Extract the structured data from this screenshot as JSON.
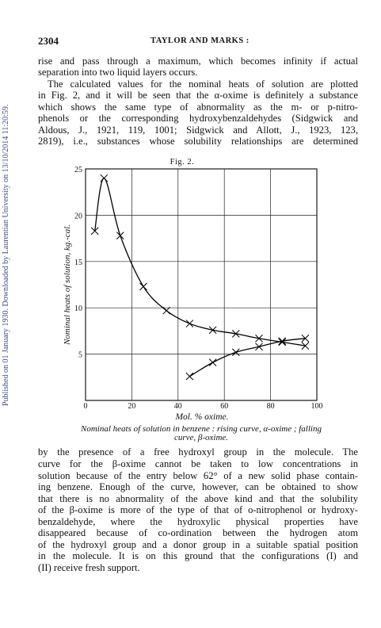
{
  "side_note": "Published on 01 January 1930. Downloaded by Laurentian University on 13/10/2014 11:20:59.",
  "header": {
    "page_number": "2304",
    "running_title": "TAYLOR AND MARKS :"
  },
  "body_top": [
    "rise and pass through a maximum, which becomes infinity if actual",
    "separation into two liquid layers occurs.",
    "The calculated values for the nominal heats of solution are plotted",
    "in Fig. 2, and it will be seen that the α-oxime is definitely a substance",
    "which shows the same type of abnormality as the m- or p-nitro-",
    "phenols or the corresponding hydroxybenzaldehydes (Sidgwick and",
    "Aldous, J., 1921, 119, 1001; Sidgwick and Allott, J., 1923, 123,",
    "2819), i.e., substances whose solubility relationships are determined"
  ],
  "chart_data": {
    "type": "line",
    "title": "Fig. 2.",
    "x_label": "Mol. % oxime.",
    "y_label": "Nominal heats of solution, kg.-cal.",
    "caption": [
      "Nominal heats of solution in benzene : rising curve, α-oxime ; falling",
      "curve, β-oxime."
    ],
    "xlim": [
      0,
      100
    ],
    "ylim": [
      0,
      25
    ],
    "xticks": [
      0,
      20,
      40,
      60,
      80,
      100
    ],
    "yticks": [
      5,
      10,
      15,
      20,
      25
    ],
    "grid": true,
    "marker": "x",
    "series": [
      {
        "color": "#000000",
        "x": [
          4,
          8,
          15,
          25,
          35,
          45,
          55,
          65,
          75,
          85,
          95
        ],
        "values": [
          18.3,
          24,
          17.8,
          12.3,
          9.7,
          8.3,
          7.6,
          7.2,
          6.7,
          6.3,
          5.9
        ]
      },
      {
        "color": "#000000",
        "x": [
          45,
          55,
          65,
          75,
          85,
          95
        ],
        "values": [
          2.6,
          4.1,
          5.2,
          5.8,
          6.4,
          6.7
        ]
      }
    ]
  },
  "body_bottom": [
    "by the presence of a free hydroxyl group in the molecule.  The",
    "curve for the β-oxime cannot be taken to low concentrations in",
    "solution because of the entry below 62° of a new solid phase contain-",
    "ing benzene.  Enough of the curve, however, can be obtained to show",
    "that there is no abnormality of the above kind and that the solubility",
    "of the β-oxime is more of the type of that of o-nitrophenol or hydroxy-",
    "benzaldehyde, where the hydroxylic physical properties have",
    "disappeared because of co-ordination between the hydrogen atom",
    "of the hydroxyl group and a donor group in a suitable spatial position",
    "in the molecule.  It is on this ground that the configurations (I) and",
    "(II) receive fresh support."
  ]
}
